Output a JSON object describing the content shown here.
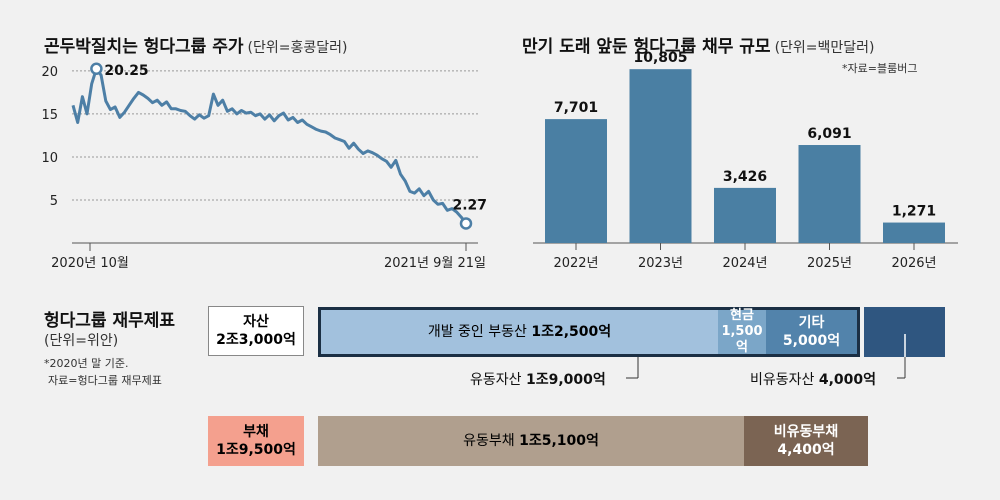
{
  "chart_data": [
    {
      "type": "line",
      "title": "곤두박질치는 헝다그룹 주가",
      "unit": "(단위=홍콩달러)",
      "x_tick_labels": [
        "2020년 10월",
        "2021년 9월 21일"
      ],
      "y_ticks": [
        5,
        10,
        15,
        20
      ],
      "ylim": [
        0,
        21.5
      ],
      "grid": true,
      "annotations": [
        {
          "label": "20.25",
          "value": 20.25
        },
        {
          "label": "2.27",
          "value": 2.27
        }
      ],
      "series": [
        {
          "values": [
            16.0,
            14.0,
            17.0,
            15.0,
            18.5,
            20.25,
            19.5,
            16.5,
            15.5,
            15.8,
            14.6,
            15.2,
            16.0,
            16.8,
            17.5,
            17.2,
            16.8,
            16.3,
            16.6,
            16.0,
            16.4,
            15.6,
            15.6,
            15.4,
            15.3,
            14.8,
            14.4,
            14.9,
            14.5,
            14.8,
            17.3,
            16.0,
            16.6,
            15.3,
            15.6,
            15.0,
            15.4,
            15.1,
            15.2,
            14.8,
            15.0,
            14.4,
            14.9,
            14.2,
            14.8,
            15.1,
            14.3,
            14.6,
            14.0,
            14.3,
            13.8,
            13.5,
            13.2,
            13.0,
            12.9,
            12.6,
            12.2,
            12.0,
            11.8,
            11.0,
            11.6,
            10.9,
            10.4,
            10.7,
            10.5,
            10.2,
            9.8,
            9.5,
            8.8,
            9.6,
            8.0,
            7.2,
            6.0,
            5.8,
            6.3,
            5.5,
            6.0,
            5.0,
            4.5,
            4.6,
            3.8,
            4.0,
            3.6,
            3.0,
            2.27
          ]
        }
      ]
    },
    {
      "type": "bar",
      "title": "만기 도래 앞둔 헝다그룹 채무 규모",
      "unit": "(단위=백만달러)",
      "source": "*자료=블룸버그",
      "categories": [
        "2022년",
        "2023년",
        "2024년",
        "2025년",
        "2026년"
      ],
      "values": [
        7701,
        10805,
        3426,
        6091,
        1271
      ],
      "value_labels": [
        "7,701",
        "10,805",
        "3,426",
        "6,091",
        "1,271"
      ],
      "ylim": [
        0,
        11500
      ],
      "color": "#4a7fa3"
    }
  ],
  "balance_sheet": {
    "title": "헝다그룹 재무제표",
    "unit": "(단위=위안)",
    "note_line1": "*2020년 말 기준.",
    "note_line2": "자료=헝다그룹 재무제표",
    "assets": {
      "label": "자산",
      "total": "2조3,000억",
      "items": [
        {
          "name": "개발 중인 부동산",
          "amount": "1조2,500억",
          "value": 12500,
          "color": "#a2c1dd"
        },
        {
          "name": "현금",
          "amount": "1,500억",
          "value": 1500,
          "color": "#7ba6c8"
        },
        {
          "name": "기타",
          "amount": "5,000억",
          "value": 5000,
          "color": "#5283ab"
        },
        {
          "name": "비유동자산",
          "amount": "4,000억",
          "value": 4000,
          "color": "#2f5680"
        }
      ],
      "current_label": "유동자산",
      "current_amount": "1조9,000억",
      "noncurrent_label": "비유동자산",
      "noncurrent_amount": "4,000억"
    },
    "liabilities": {
      "label": "부채",
      "total": "1조9,500억",
      "items": [
        {
          "name": "유동부채",
          "amount": "1조5,100억",
          "value": 15100,
          "color": "#b09f8e"
        },
        {
          "name": "비유동부채",
          "amount": "4,400억",
          "value": 4400,
          "color": "#7b6453"
        }
      ]
    },
    "colors": {
      "assets_label_bg": "#ffffff",
      "liab_label_bg": "#f4a08e"
    }
  }
}
